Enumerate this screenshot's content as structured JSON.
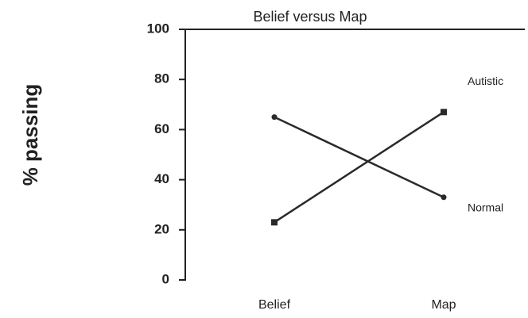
{
  "chart_data": {
    "type": "line",
    "title": "Belief versus Map",
    "ylabel": "% passing",
    "categories": [
      "Belief",
      "Map"
    ],
    "series": [
      {
        "name": "Autistic",
        "color": "#2a2a2a",
        "marker": "square",
        "values": [
          23,
          67
        ]
      },
      {
        "name": "Normal",
        "color": "#2a2a2a",
        "marker": "circle",
        "values": [
          65,
          33
        ]
      }
    ],
    "ylim": [
      0,
      100
    ],
    "yticks": [
      0,
      20,
      40,
      60,
      80,
      100
    ]
  }
}
